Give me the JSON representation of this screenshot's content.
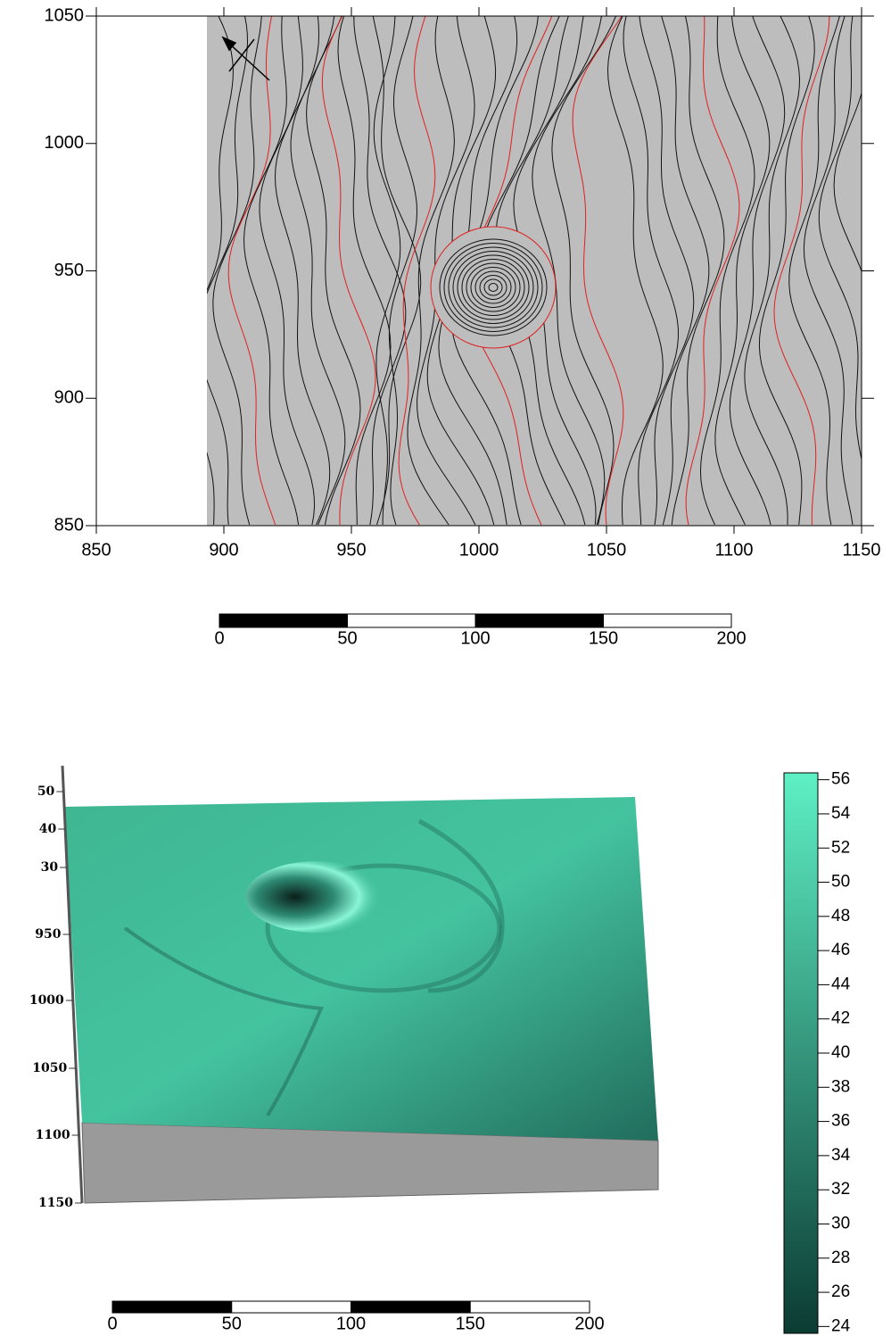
{
  "contour_map": {
    "xlim": [
      850,
      1150
    ],
    "ylim": [
      850,
      1050
    ],
    "xticks": [
      850,
      900,
      950,
      1000,
      1050,
      1100,
      1150
    ],
    "yticks": [
      850,
      900,
      950,
      1000,
      1050
    ]
  },
  "scale_bar_top": {
    "ticks": [
      0,
      50,
      100,
      150,
      200
    ]
  },
  "surface_3d": {
    "axis_labels": [
      "50",
      "40",
      "30",
      "950",
      "1000",
      "1050",
      "1100",
      "1150"
    ]
  },
  "colorbar": {
    "ylim": [
      23.6,
      56.4
    ],
    "ticks": [
      56,
      54,
      52,
      50,
      48,
      46,
      44,
      42,
      40,
      38,
      36,
      34,
      32,
      30,
      28,
      26,
      24
    ],
    "colors": [
      "#0b3b33",
      "#5ef0c4"
    ]
  },
  "scale_bar_bottom": {
    "ticks": [
      0,
      50,
      100,
      150,
      200
    ]
  }
}
